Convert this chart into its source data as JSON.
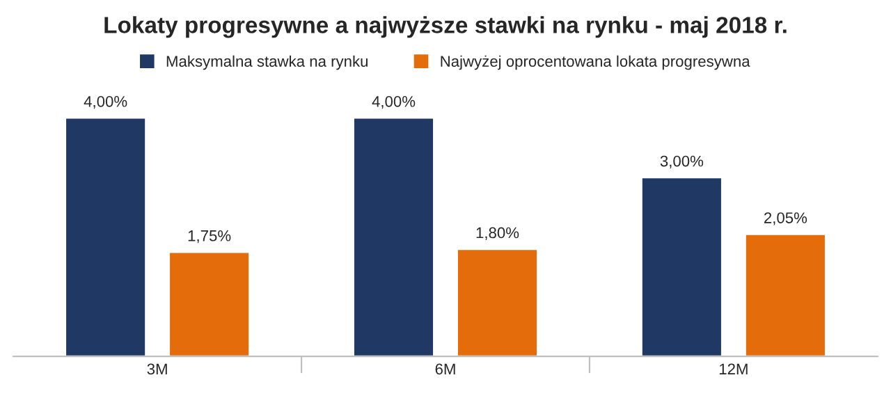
{
  "chart_data": {
    "type": "bar",
    "title": "Lokaty progresywne a najwyższe stawki na rynku - maj 2018 r.",
    "categories": [
      "3M",
      "6M",
      "12M"
    ],
    "series": [
      {
        "name": "Maksymalna stawka na rynku",
        "color": "#1f3864",
        "values": [
          4.0,
          4.0,
          3.0
        ],
        "value_labels": [
          "4,00%",
          "4,00%",
          "3,00%"
        ]
      },
      {
        "name": "Najwyżej oprocentowana lokata progresywna",
        "color": "#e46c0a",
        "values": [
          1.75,
          1.8,
          2.05
        ],
        "value_labels": [
          "1,75%",
          "1,80%",
          "2,05%"
        ]
      }
    ],
    "legend": "top",
    "grid": false
  }
}
